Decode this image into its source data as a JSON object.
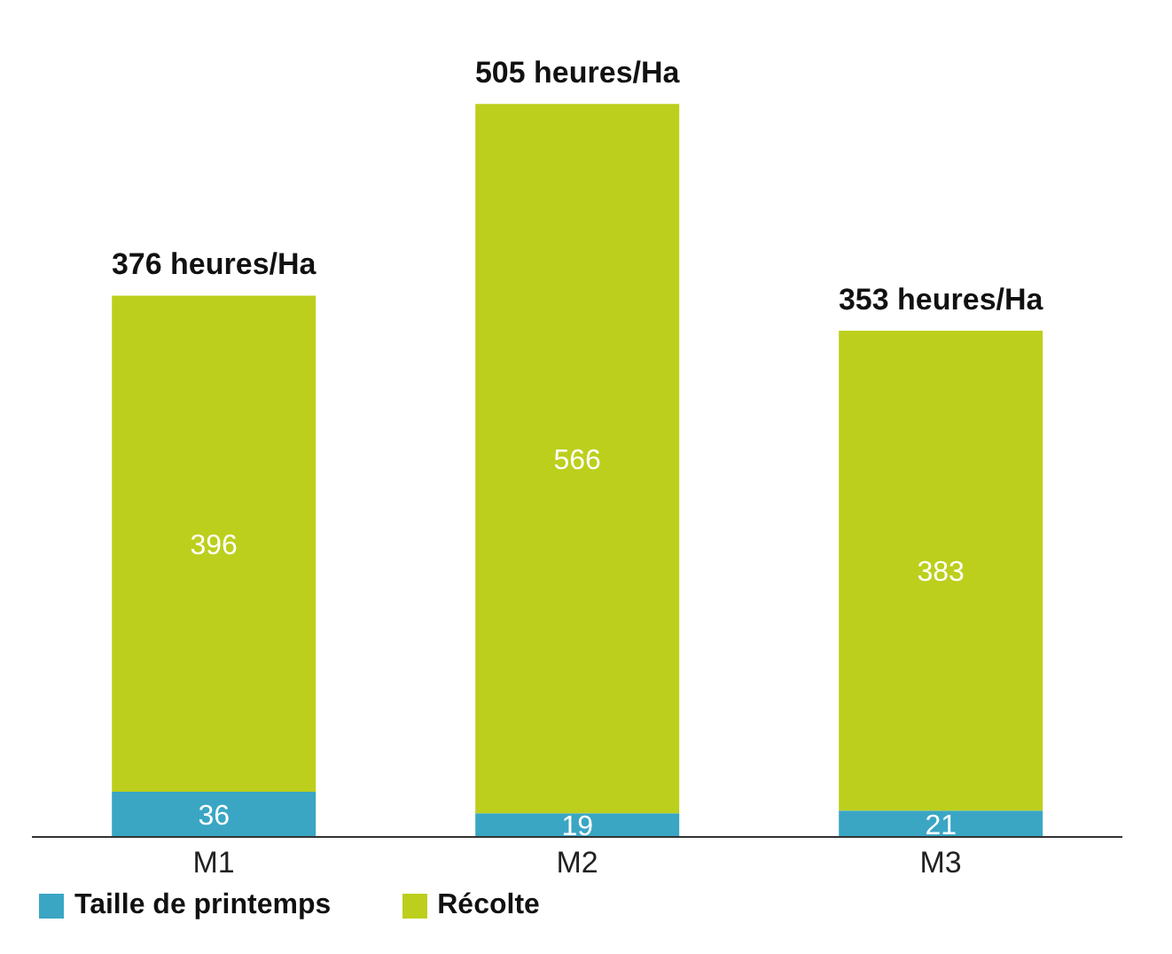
{
  "chart_data": {
    "type": "bar",
    "stacked": true,
    "categories": [
      "M1",
      "M2",
      "M3"
    ],
    "series": [
      {
        "name": "Taille de printemps",
        "color": "#3aa6c4",
        "values": [
          36,
          19,
          21
        ]
      },
      {
        "name": "Récolte",
        "color": "#bccf1c",
        "values": [
          396,
          566,
          383
        ]
      }
    ],
    "data_labels": true,
    "annotations": [
      "376 heures/Ha",
      "505 heures/Ha",
      "353 heures/Ha"
    ],
    "legend": "bottom left",
    "grid": false
  }
}
